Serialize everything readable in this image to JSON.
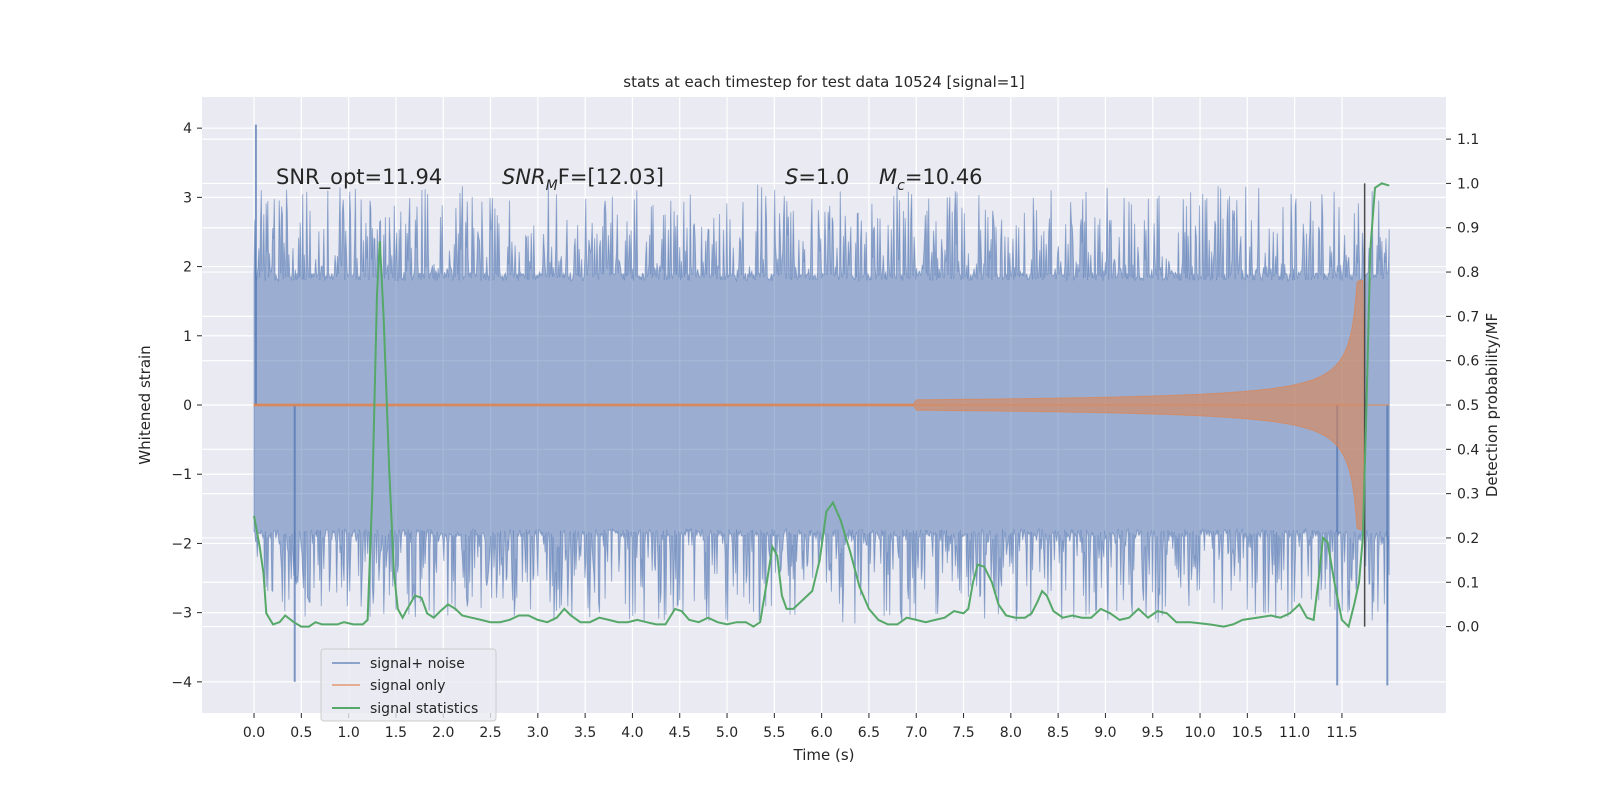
{
  "chart_data": {
    "type": "line",
    "title": "stats at each timestep for test data 10524 [signal=1]",
    "xlabel": "Time (s)",
    "ylabel": "Whitened strain",
    "ylabel_right": "Detection probability/MF",
    "xlim": [
      -0.55,
      12.6
    ],
    "ylim": [
      -4.45,
      4.45
    ],
    "ylim_right": [
      -0.195,
      1.195
    ],
    "x_ticks": [
      0.0,
      0.5,
      1.0,
      1.5,
      2.0,
      2.5,
      3.0,
      3.5,
      4.0,
      4.5,
      5.0,
      5.5,
      6.0,
      6.5,
      7.0,
      7.5,
      8.0,
      8.5,
      9.0,
      9.5,
      10.0,
      10.5,
      11.0,
      11.5
    ],
    "x_tick_labels": [
      "0.0",
      "0.5",
      "1.0",
      "1.5",
      "2.0",
      "2.5",
      "3.0",
      "3.5",
      "4.0",
      "4.5",
      "5.0",
      "5.5",
      "6.0",
      "6.5",
      "7.0",
      "7.5",
      "8.0",
      "8.5",
      "9.0",
      "9.5",
      "10.0",
      "10.5",
      "11.0",
      "11.5"
    ],
    "y_ticks": [
      -4,
      -3,
      -2,
      -1,
      0,
      1,
      2,
      3,
      4
    ],
    "y_tick_labels": [
      "−4",
      "−3",
      "−2",
      "−1",
      "0",
      "1",
      "2",
      "3",
      "4"
    ],
    "y_right_ticks": [
      0.0,
      0.1,
      0.2,
      0.3,
      0.4,
      0.5,
      0.6,
      0.7,
      0.8,
      0.9,
      1.0,
      1.1
    ],
    "y_right_tick_labels": [
      "0.0",
      "0.1",
      "0.2",
      "0.3",
      "0.4",
      "0.5",
      "0.6",
      "0.7",
      "0.8",
      "0.9",
      "1.0",
      "1.1"
    ],
    "grid": true,
    "legend_position": "lower-left",
    "annotations": {
      "snr_opt": "SNR_opt=11.94",
      "snr_mf_label": "SNR",
      "snr_mf_sub": "M",
      "snr_mf_tail": "F=[12.03]",
      "s_label": "S",
      "s_value": "=1.0",
      "mc_label": "M",
      "mc_sub": "c",
      "mc_value": "=10.46"
    },
    "vertical_marker_x": 11.74,
    "series": [
      {
        "name": "signal+ noise",
        "color": "#4c72b0",
        "opacity": 0.5,
        "duration_s": 12.0,
        "typical_amplitude": 1.85,
        "peak_max": 4.05,
        "peak_min": -4.05
      },
      {
        "name": "signal only",
        "color": "#dd8452",
        "opacity": 0.6,
        "chirp_start_s": 7.0,
        "chirp_end_s": 11.72,
        "chirp_peak_amplitude": 1.8,
        "chirp_amplitude_at_8s": 0.06,
        "chirp_amplitude_at_10_5s": 0.2,
        "chirp_amplitude_at_11_5s": 0.65
      },
      {
        "name": "signal statistics",
        "color": "#55a868",
        "axis": "right",
        "points": [
          [
            0.0,
            0.25
          ],
          [
            0.06,
            0.18
          ],
          [
            0.1,
            0.12
          ],
          [
            0.13,
            0.03
          ],
          [
            0.2,
            0.005
          ],
          [
            0.27,
            0.01
          ],
          [
            0.33,
            0.025
          ],
          [
            0.42,
            0.01
          ],
          [
            0.5,
            0.0
          ],
          [
            0.58,
            0.0
          ],
          [
            0.65,
            0.01
          ],
          [
            0.72,
            0.005
          ],
          [
            0.8,
            0.005
          ],
          [
            0.88,
            0.005
          ],
          [
            0.95,
            0.01
          ],
          [
            1.05,
            0.005
          ],
          [
            1.15,
            0.005
          ],
          [
            1.2,
            0.015
          ],
          [
            1.25,
            0.3
          ],
          [
            1.3,
            0.75
          ],
          [
            1.33,
            0.87
          ],
          [
            1.37,
            0.7
          ],
          [
            1.43,
            0.35
          ],
          [
            1.48,
            0.12
          ],
          [
            1.52,
            0.04
          ],
          [
            1.57,
            0.02
          ],
          [
            1.62,
            0.04
          ],
          [
            1.7,
            0.07
          ],
          [
            1.77,
            0.065
          ],
          [
            1.83,
            0.03
          ],
          [
            1.9,
            0.02
          ],
          [
            1.97,
            0.035
          ],
          [
            2.05,
            0.05
          ],
          [
            2.13,
            0.04
          ],
          [
            2.2,
            0.025
          ],
          [
            2.3,
            0.02
          ],
          [
            2.4,
            0.015
          ],
          [
            2.5,
            0.01
          ],
          [
            2.6,
            0.01
          ],
          [
            2.7,
            0.015
          ],
          [
            2.8,
            0.025
          ],
          [
            2.9,
            0.025
          ],
          [
            3.0,
            0.015
          ],
          [
            3.1,
            0.01
          ],
          [
            3.2,
            0.02
          ],
          [
            3.28,
            0.04
          ],
          [
            3.35,
            0.025
          ],
          [
            3.45,
            0.01
          ],
          [
            3.55,
            0.01
          ],
          [
            3.65,
            0.02
          ],
          [
            3.75,
            0.015
          ],
          [
            3.85,
            0.01
          ],
          [
            3.95,
            0.01
          ],
          [
            4.05,
            0.015
          ],
          [
            4.15,
            0.01
          ],
          [
            4.25,
            0.005
          ],
          [
            4.35,
            0.005
          ],
          [
            4.45,
            0.04
          ],
          [
            4.52,
            0.035
          ],
          [
            4.6,
            0.015
          ],
          [
            4.7,
            0.01
          ],
          [
            4.8,
            0.02
          ],
          [
            4.9,
            0.01
          ],
          [
            5.0,
            0.005
          ],
          [
            5.1,
            0.01
          ],
          [
            5.2,
            0.01
          ],
          [
            5.28,
            0.0
          ],
          [
            5.35,
            0.01
          ],
          [
            5.42,
            0.1
          ],
          [
            5.48,
            0.18
          ],
          [
            5.53,
            0.16
          ],
          [
            5.58,
            0.07
          ],
          [
            5.63,
            0.04
          ],
          [
            5.7,
            0.04
          ],
          [
            5.8,
            0.06
          ],
          [
            5.9,
            0.08
          ],
          [
            5.98,
            0.15
          ],
          [
            6.05,
            0.26
          ],
          [
            6.12,
            0.28
          ],
          [
            6.2,
            0.24
          ],
          [
            6.3,
            0.17
          ],
          [
            6.4,
            0.09
          ],
          [
            6.5,
            0.04
          ],
          [
            6.6,
            0.015
          ],
          [
            6.7,
            0.005
          ],
          [
            6.8,
            0.005
          ],
          [
            6.9,
            0.02
          ],
          [
            7.0,
            0.015
          ],
          [
            7.1,
            0.01
          ],
          [
            7.2,
            0.015
          ],
          [
            7.3,
            0.02
          ],
          [
            7.4,
            0.035
          ],
          [
            7.5,
            0.03
          ],
          [
            7.55,
            0.04
          ],
          [
            7.6,
            0.1
          ],
          [
            7.65,
            0.14
          ],
          [
            7.72,
            0.135
          ],
          [
            7.8,
            0.1
          ],
          [
            7.87,
            0.05
          ],
          [
            7.95,
            0.025
          ],
          [
            8.05,
            0.02
          ],
          [
            8.15,
            0.02
          ],
          [
            8.22,
            0.03
          ],
          [
            8.28,
            0.055
          ],
          [
            8.33,
            0.08
          ],
          [
            8.38,
            0.07
          ],
          [
            8.45,
            0.035
          ],
          [
            8.55,
            0.02
          ],
          [
            8.65,
            0.025
          ],
          [
            8.75,
            0.02
          ],
          [
            8.85,
            0.02
          ],
          [
            8.95,
            0.04
          ],
          [
            9.05,
            0.03
          ],
          [
            9.15,
            0.015
          ],
          [
            9.25,
            0.02
          ],
          [
            9.35,
            0.04
          ],
          [
            9.45,
            0.02
          ],
          [
            9.55,
            0.035
          ],
          [
            9.65,
            0.03
          ],
          [
            9.75,
            0.01
          ],
          [
            9.9,
            0.01
          ],
          [
            10.1,
            0.005
          ],
          [
            10.25,
            0.0
          ],
          [
            10.35,
            0.005
          ],
          [
            10.45,
            0.015
          ],
          [
            10.6,
            0.02
          ],
          [
            10.75,
            0.025
          ],
          [
            10.85,
            0.02
          ],
          [
            10.95,
            0.03
          ],
          [
            11.05,
            0.05
          ],
          [
            11.13,
            0.02
          ],
          [
            11.2,
            0.015
          ],
          [
            11.25,
            0.1
          ],
          [
            11.3,
            0.2
          ],
          [
            11.35,
            0.19
          ],
          [
            11.42,
            0.1
          ],
          [
            11.5,
            0.015
          ],
          [
            11.57,
            0.0
          ],
          [
            11.63,
            0.05
          ],
          [
            11.68,
            0.1
          ],
          [
            11.72,
            0.2
          ],
          [
            11.76,
            0.5
          ],
          [
            11.8,
            0.85
          ],
          [
            11.85,
            0.99
          ],
          [
            11.92,
            1.0
          ],
          [
            12.0,
            0.995
          ]
        ]
      }
    ]
  }
}
